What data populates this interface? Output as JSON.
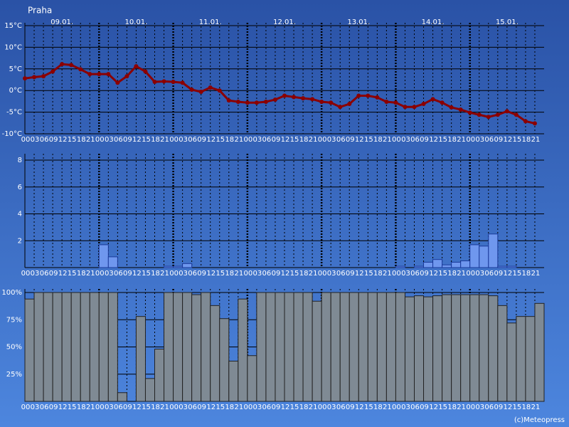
{
  "chart_data": [
    {
      "type": "line",
      "title": "Praha",
      "color": "#8b0000",
      "grid": true,
      "day_labels": [
        "09.01.",
        "10.01.",
        "11.01.",
        "12.01.",
        "13.01.",
        "14.01.",
        "15.01."
      ],
      "categories": [
        "00",
        "03",
        "06",
        "09",
        "12",
        "15",
        "18",
        "21",
        "00",
        "03",
        "06",
        "09",
        "12",
        "15",
        "18",
        "21",
        "00",
        "03",
        "06",
        "09",
        "12",
        "15",
        "18",
        "21",
        "00",
        "03",
        "06",
        "09",
        "12",
        "15",
        "18",
        "21",
        "00",
        "03",
        "06",
        "09",
        "12",
        "15",
        "18",
        "21",
        "00",
        "03",
        "06",
        "09",
        "12",
        "15",
        "18",
        "21",
        "00",
        "03",
        "06",
        "09",
        "12",
        "15",
        "18",
        "21"
      ],
      "values": [
        2.8,
        3.1,
        3.3,
        4.4,
        6.1,
        5.9,
        4.9,
        3.8,
        3.8,
        3.8,
        1.8,
        3.3,
        5.6,
        4.4,
        2.0,
        2.1,
        2.0,
        1.8,
        0.2,
        -0.3,
        0.7,
        0,
        -2.3,
        -2.6,
        -2.8,
        -2.8,
        -2.6,
        -2.1,
        -1.2,
        -1.5,
        -1.8,
        -2.0,
        -2.6,
        -2.8,
        -3.8,
        -3.1,
        -1.2,
        -1.2,
        -1.6,
        -2.6,
        -2.8,
        -3.8,
        -3.8,
        -3.1,
        -2.0,
        -2.8,
        -3.9,
        -4.4,
        -5.1,
        -5.6,
        -6.1,
        -5.6,
        -4.8,
        -5.6,
        -7.1,
        -7.6
      ],
      "ylim": [
        -10,
        15
      ],
      "yticks": [
        {
          "value": 15,
          "label": "15°C"
        },
        {
          "value": 10,
          "label": "10°C"
        },
        {
          "value": 5,
          "label": "5°C"
        },
        {
          "value": 0,
          "label": "0°C"
        },
        {
          "value": -5,
          "label": "-5°C"
        },
        {
          "value": -10,
          "label": "-10°C"
        }
      ]
    },
    {
      "type": "bar",
      "color": "#6f97ee",
      "grid": true,
      "categories": [
        "00",
        "03",
        "06",
        "09",
        "12",
        "15",
        "18",
        "21",
        "00",
        "03",
        "06",
        "09",
        "12",
        "15",
        "18",
        "21",
        "00",
        "03",
        "06",
        "09",
        "12",
        "15",
        "18",
        "21",
        "00",
        "03",
        "06",
        "09",
        "12",
        "15",
        "18",
        "21",
        "00",
        "03",
        "06",
        "09",
        "12",
        "15",
        "18",
        "21",
        "00",
        "03",
        "06",
        "09",
        "12",
        "15",
        "18",
        "21",
        "00",
        "03",
        "06",
        "09",
        "12",
        "15",
        "18",
        "21"
      ],
      "values": [
        0,
        0,
        0,
        0,
        0,
        0,
        0,
        0,
        1.7,
        0.8,
        0,
        0,
        0,
        0,
        0,
        0.1,
        0.1,
        0.3,
        0,
        0,
        0,
        0,
        0,
        0,
        0,
        0,
        0,
        0,
        0,
        0,
        0,
        0,
        0,
        0,
        0,
        0,
        0,
        0,
        0,
        0,
        0.1,
        0,
        0.1,
        0.4,
        0.6,
        0.2,
        0.4,
        0.5,
        1.7,
        1.6,
        2.5,
        0.1,
        0.1,
        0,
        0,
        0
      ],
      "ylim": [
        0,
        8
      ],
      "yticks": [
        8,
        6,
        4,
        2
      ]
    },
    {
      "type": "bar",
      "color": "#7f8a94",
      "grid": true,
      "categories": [
        "00",
        "03",
        "06",
        "09",
        "12",
        "15",
        "18",
        "21",
        "00",
        "03",
        "06",
        "09",
        "12",
        "15",
        "18",
        "21",
        "00",
        "03",
        "06",
        "09",
        "12",
        "15",
        "18",
        "21",
        "00",
        "03",
        "06",
        "09",
        "12",
        "15",
        "18",
        "21",
        "00",
        "03",
        "06",
        "09",
        "12",
        "15",
        "18",
        "21",
        "00",
        "03",
        "06",
        "09",
        "12",
        "15",
        "18",
        "21",
        "00",
        "03",
        "06",
        "09",
        "12",
        "15",
        "18",
        "21"
      ],
      "values": [
        94,
        100,
        100,
        100,
        100,
        100,
        100,
        100,
        100,
        100,
        8,
        0,
        78,
        21,
        48,
        100,
        100,
        100,
        98,
        100,
        88,
        76,
        37,
        94,
        42,
        100,
        100,
        100,
        100,
        100,
        100,
        92,
        100,
        100,
        100,
        100,
        100,
        100,
        100,
        100,
        100,
        96,
        97,
        96,
        97,
        98,
        98,
        98,
        98,
        98,
        97,
        88,
        72,
        78,
        78,
        90
      ],
      "ylim": [
        0,
        100
      ],
      "yticks": [
        {
          "value": 100,
          "label": "100%"
        },
        {
          "value": 75,
          "label": "75%"
        },
        {
          "value": 50,
          "label": "50%"
        },
        {
          "value": 25,
          "label": "25%"
        }
      ]
    }
  ],
  "credit": "(c)Meteopress"
}
